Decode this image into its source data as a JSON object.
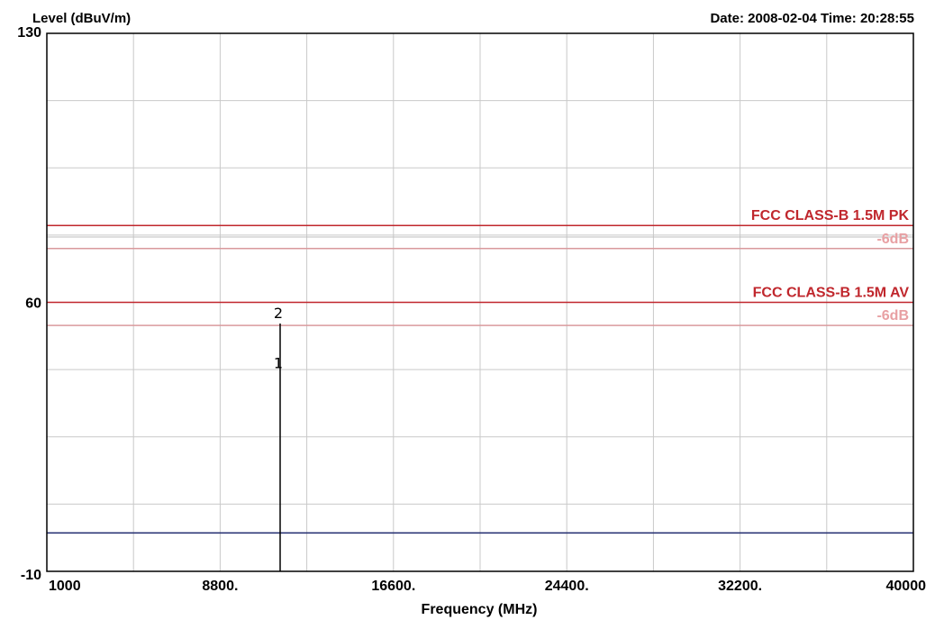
{
  "chart_data": {
    "type": "line",
    "ylabel": "Level (dBuV/m)",
    "xlabel": "Frequency (MHz)",
    "datetime_label": "Date: 2008-02-04  Time: 20:28:55",
    "xlim": [
      1000,
      40000
    ],
    "ylim": [
      -10,
      130
    ],
    "x_ticks": [
      {
        "value": 1000,
        "label": "1000"
      },
      {
        "value": 8800,
        "label": "8800."
      },
      {
        "value": 16600,
        "label": "16600."
      },
      {
        "value": 24400,
        "label": "24400."
      },
      {
        "value": 32200,
        "label": "32200."
      },
      {
        "value": 40000,
        "label": "40000"
      }
    ],
    "y_ticks": [
      {
        "value": 130,
        "label": "130"
      },
      {
        "value": 60,
        "label": "60"
      },
      {
        "value": -10,
        "label": "-10"
      }
    ],
    "x_gridlines": [
      1000,
      4900,
      8800,
      12700,
      16600,
      20500,
      24400,
      28300,
      32200,
      36100,
      40000
    ],
    "y_gridlines": [
      -10,
      7.5,
      25,
      42.5,
      60,
      77.5,
      95,
      112.5,
      130
    ],
    "grid": true,
    "limit_lines": [
      {
        "name": "FCC CLASS-B 1.5M PK",
        "value": 80,
        "color": "#c0272d",
        "label_color": "#c0272d"
      },
      {
        "name": "-6dB",
        "value": 74,
        "color": "#d99a9d",
        "label_color": "#e8a0a3"
      },
      {
        "name": "FCC CLASS-B 1.5M AV",
        "value": 60,
        "color": "#c0272d",
        "label_color": "#c0272d"
      },
      {
        "name": "-6dB",
        "value": 54,
        "color": "#d99a9d",
        "label_color": "#e8a0a3"
      }
    ],
    "extra_lines": [
      {
        "value": 77,
        "color": "#bfbfbf"
      }
    ],
    "noise_floor": {
      "value": 0,
      "color": "#1f2a6e"
    },
    "marker_line": {
      "x": 11500,
      "y_top": 54.5,
      "y_bottom": -10,
      "color": "#000000"
    },
    "markers": [
      {
        "label": "2",
        "x": 11500,
        "y": 54.5
      },
      {
        "label": "1",
        "x": 11500,
        "y": 41.5
      }
    ],
    "colors": {
      "grid": "#c9c9c9",
      "axis": "#000000",
      "text": "#000000"
    }
  }
}
